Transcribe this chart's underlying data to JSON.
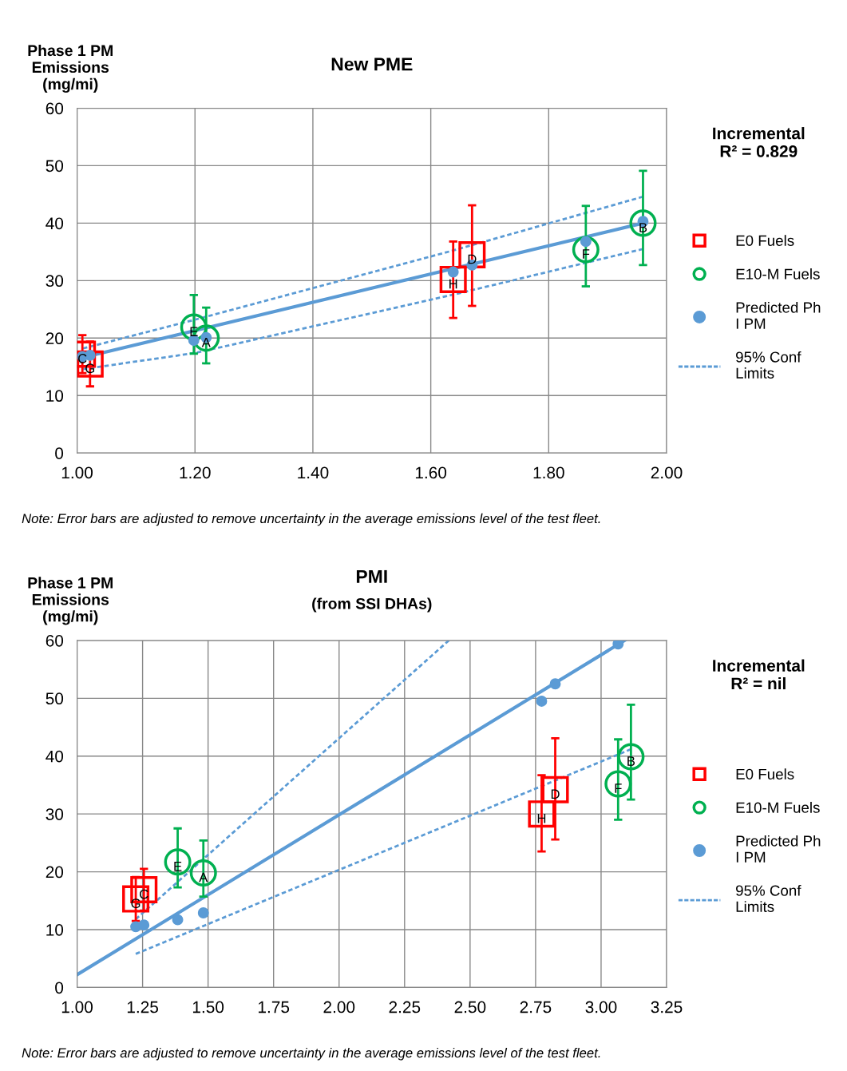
{
  "chart_data": [
    {
      "type": "scatter",
      "title": "New PME",
      "ylabel": "Phase 1 PM Emissions (mg/mi)",
      "annotations": [
        "Incremental R² = 0.829",
        "Note: Error bars are adjusted to remove uncertainty in the average emissions level of the test fleet."
      ],
      "xlim": [
        1.0,
        2.0
      ],
      "xticks": [
        {
          "value": 1.0,
          "label": "1.00"
        },
        {
          "value": 1.2,
          "label": "1.20"
        },
        {
          "value": 1.4,
          "label": "1.40"
        },
        {
          "value": 1.6,
          "label": "1.60"
        },
        {
          "value": 1.8,
          "label": "1.80"
        },
        {
          "value": 2.0,
          "label": "2.00"
        }
      ],
      "ylim": [
        0,
        60
      ],
      "yticks": [
        0,
        10,
        20,
        30,
        40,
        50,
        60
      ],
      "grid": true,
      "legend": "right",
      "series": [
        {
          "name": "E0 Fuels",
          "type": "scatter",
          "marker": "square",
          "color": "#ff0000",
          "x": [
            1.009,
            1.022,
            1.638,
            1.67
          ],
          "values": [
            17.2,
            15.5,
            30.2,
            34.5
          ],
          "errors": [
            [
              13.9,
              20.5
            ],
            [
              11.6,
              19.4
            ],
            [
              23.5,
              36.8
            ],
            [
              25.6,
              43.1
            ]
          ],
          "value_labels": [
            "C",
            "G",
            "H",
            "D"
          ]
        },
        {
          "name": "E10-M Fuels",
          "type": "scatter",
          "marker": "circle",
          "color": "#00b050",
          "x": [
            1.198,
            1.219,
            1.863,
            1.96
          ],
          "values": [
            21.9,
            20.0,
            35.4,
            40.0
          ],
          "errors": [
            [
              17.3,
              27.5
            ],
            [
              15.6,
              25.3
            ],
            [
              29.0,
              43.0
            ],
            [
              32.7,
              49.1
            ]
          ],
          "value_labels": [
            "E",
            "A",
            "F",
            "B"
          ]
        },
        {
          "name": "Predicted Ph I PM",
          "type": "scatter",
          "marker": "circle",
          "color": "#5b9bd5",
          "x": [
            1.009,
            1.022,
            1.198,
            1.219,
            1.638,
            1.67,
            1.863,
            1.96
          ],
          "values": [
            16.8,
            17.0,
            19.6,
            20.1,
            31.5,
            32.7,
            36.8,
            40.3
          ]
        },
        {
          "type": "line",
          "marker": "none",
          "line_style": "solid",
          "color": "#5b9bd5",
          "x": [
            1.009,
            1.96
          ],
          "values": [
            16.6,
            40.0
          ]
        },
        {
          "name": "95% Conf Limits",
          "type": "line",
          "marker": "none",
          "line_style": "dashed",
          "color": "#5b9bd5",
          "x": [
            1.01,
            1.2,
            1.64,
            1.96
          ],
          "values": [
            18.2,
            23.2,
            35.3,
            44.6
          ]
        },
        {
          "type": "line",
          "marker": "none",
          "line_style": "dashed",
          "color": "#5b9bd5",
          "x": [
            1.01,
            1.2,
            1.64,
            1.96
          ],
          "values": [
            14.6,
            17.4,
            27.6,
            35.5
          ]
        }
      ]
    },
    {
      "type": "scatter",
      "title": "PMI",
      "subtitle": "(from SSI DHAs)",
      "ylabel": "Phase 1 PM Emissions (mg/mi)",
      "annotations": [
        "Incremental R² = nil",
        "Note: Error bars are adjusted to remove uncertainty in the average emissions level of the test fleet."
      ],
      "xlim": [
        1.0,
        3.25
      ],
      "xticks": [
        {
          "value": 1.0,
          "label": "1.00"
        },
        {
          "value": 1.25,
          "label": "1.25"
        },
        {
          "value": 1.5,
          "label": "1.50"
        },
        {
          "value": 1.75,
          "label": "1.75"
        },
        {
          "value": 2.0,
          "label": "2.00"
        },
        {
          "value": 2.25,
          "label": "2.25"
        },
        {
          "value": 2.5,
          "label": "2.50"
        },
        {
          "value": 2.75,
          "label": "2.75"
        },
        {
          "value": 3.0,
          "label": "3.00"
        },
        {
          "value": 3.25,
          "label": "3.25"
        }
      ],
      "ylim": [
        0,
        60
      ],
      "yticks": [
        0,
        10,
        20,
        30,
        40,
        50,
        60
      ],
      "grid": true,
      "legend": "right",
      "series": [
        {
          "name": "E0 Fuels",
          "type": "scatter",
          "marker": "square",
          "color": "#ff0000",
          "x": [
            1.224,
            1.255,
            2.773,
            2.825
          ],
          "values": [
            15.3,
            16.9,
            30.0,
            34.2
          ],
          "errors": [
            [
              11.5,
              19.1
            ],
            [
              13.3,
              20.5
            ],
            [
              23.5,
              36.7
            ],
            [
              25.6,
              43.1
            ]
          ],
          "value_labels": [
            "G",
            "C",
            "H",
            "D"
          ]
        },
        {
          "name": "E10-M Fuels",
          "type": "scatter",
          "marker": "circle",
          "color": "#00b050",
          "x": [
            1.384,
            1.482,
            3.065,
            3.114
          ],
          "values": [
            21.7,
            19.8,
            35.2,
            39.9
          ],
          "errors": [
            [
              17.3,
              27.5
            ],
            [
              15.7,
              25.4
            ],
            [
              29.0,
              42.9
            ],
            [
              32.5,
              48.9
            ]
          ],
          "value_labels": [
            "E",
            "A",
            "F",
            "B"
          ]
        },
        {
          "name": "Predicted Ph I PM",
          "type": "scatter",
          "marker": "circle",
          "color": "#5b9bd5",
          "x": [
            1.224,
            1.255,
            1.384,
            1.482,
            2.773,
            2.825,
            3.065
          ],
          "values": [
            10.5,
            10.8,
            11.7,
            12.9,
            49.5,
            52.5,
            59.4
          ]
        },
        {
          "type": "line",
          "marker": "none",
          "line_style": "solid",
          "color": "#5b9bd5",
          "x": [
            1.0,
            3.09
          ],
          "values": [
            2.2,
            60.0
          ]
        },
        {
          "name": "95% Conf Limits",
          "type": "line",
          "marker": "none",
          "line_style": "dashed",
          "color": "#5b9bd5",
          "x": [
            1.224,
            2.419
          ],
          "values": [
            11.8,
            60.0
          ]
        },
        {
          "type": "line",
          "marker": "none",
          "line_style": "dashed",
          "color": "#5b9bd5",
          "x": [
            1.224,
            3.114
          ],
          "values": [
            5.8,
            41.2
          ]
        }
      ]
    }
  ]
}
